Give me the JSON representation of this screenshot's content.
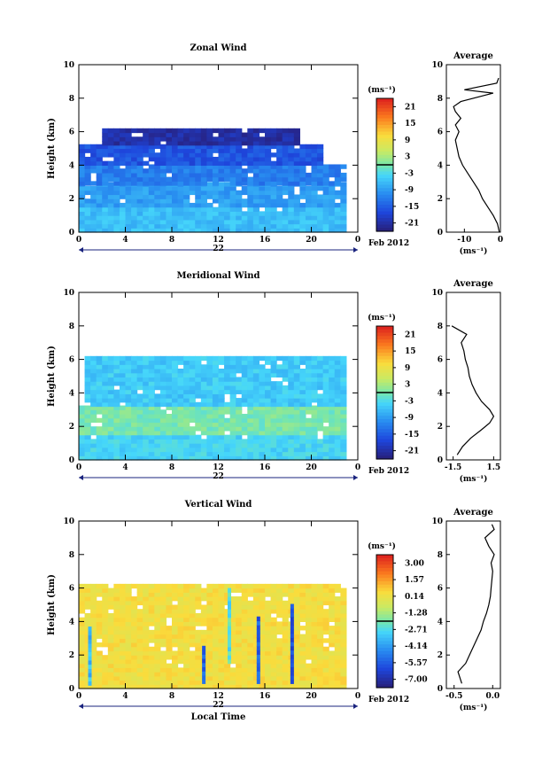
{
  "chart_data": [
    {
      "type": "heatmap",
      "title": "Zonal Wind",
      "ylabel": "Height (km)",
      "x_ticks": [
        "0",
        "4",
        "8",
        "12",
        "16",
        "20",
        "0"
      ],
      "xlim": [
        0,
        24
      ],
      "y_ticks": [
        "0",
        "2",
        "4",
        "6",
        "8",
        "10"
      ],
      "ylim": [
        0,
        10
      ],
      "date_day": "22",
      "date_month": "Feb 2012",
      "colorbar": {
        "unit": "(ms⁻¹)",
        "ticks": [
          "21",
          "15",
          "9",
          "3",
          "-3",
          "-9",
          "-15",
          "-21"
        ],
        "range": [
          -24,
          24
        ]
      },
      "layers": [
        {
          "y": [
            0,
            1.5
          ],
          "value": -6,
          "x_start": 0,
          "x_end": 23
        },
        {
          "y": [
            1.5,
            2.8
          ],
          "value": -9,
          "x_start": 0,
          "x_end": 23
        },
        {
          "y": [
            2.8,
            4.0
          ],
          "value": -12,
          "x_start": 0,
          "x_end": 23
        },
        {
          "y": [
            4.0,
            5.2
          ],
          "value": -16,
          "x_start": 0,
          "x_end": 21
        },
        {
          "y": [
            5.2,
            6.2
          ],
          "value": -21,
          "x_start": 2,
          "x_end": 19
        }
      ],
      "average_profile": {
        "title": "Average",
        "xlabel": "(ms⁻¹)",
        "x_ticks": [
          "-10",
          "0"
        ],
        "xlim": [
          -15,
          0
        ],
        "points": [
          [
            -0.3,
            0
          ],
          [
            -0.8,
            0.5
          ],
          [
            -2,
            1
          ],
          [
            -3.5,
            1.5
          ],
          [
            -5,
            2
          ],
          [
            -6,
            2.5
          ],
          [
            -7.5,
            3
          ],
          [
            -9,
            3.5
          ],
          [
            -10.5,
            4
          ],
          [
            -11.5,
            4.5
          ],
          [
            -12,
            5
          ],
          [
            -12.5,
            5.5
          ],
          [
            -11.5,
            6
          ],
          [
            -12.5,
            6.4
          ],
          [
            -11,
            6.8
          ],
          [
            -12.5,
            7.2
          ],
          [
            -13,
            7.5
          ],
          [
            -11,
            7.8
          ],
          [
            -2,
            8.3
          ],
          [
            -10,
            8.5
          ],
          [
            -1,
            8.9
          ],
          [
            -0.5,
            9.2
          ]
        ]
      }
    },
    {
      "type": "heatmap",
      "title": "Meridional Wind",
      "ylabel": "Height (km)",
      "x_ticks": [
        "0",
        "4",
        "8",
        "12",
        "16",
        "20",
        "0"
      ],
      "xlim": [
        0,
        24
      ],
      "y_ticks": [
        "0",
        "2",
        "4",
        "6",
        "8",
        "10"
      ],
      "ylim": [
        0,
        10
      ],
      "date_day": "22",
      "date_month": "Feb 2012",
      "colorbar": {
        "unit": "(ms⁻¹)",
        "ticks": [
          "21",
          "15",
          "9",
          "3",
          "-3",
          "-9",
          "-15",
          "-21"
        ],
        "range": [
          -24,
          24
        ]
      },
      "layers": [
        {
          "y": [
            0,
            1.5
          ],
          "value": -4,
          "x_start": 0,
          "x_end": 23
        },
        {
          "y": [
            1.5,
            3.2
          ],
          "value": 0,
          "x_start": 0,
          "x_end": 23
        },
        {
          "y": [
            3.2,
            6.0
          ],
          "value": -5,
          "x_start": 0.5,
          "x_end": 23
        }
      ],
      "average_profile": {
        "title": "Average",
        "xlabel": "(ms⁻¹)",
        "x_ticks": [
          "-1.5",
          "1.5"
        ],
        "xlim": [
          -2,
          2
        ],
        "points": [
          [
            -1.2,
            0.3
          ],
          [
            -0.8,
            0.8
          ],
          [
            -0.2,
            1.3
          ],
          [
            0.6,
            1.8
          ],
          [
            1.2,
            2.2
          ],
          [
            1.5,
            2.6
          ],
          [
            1.2,
            3.0
          ],
          [
            0.6,
            3.5
          ],
          [
            0.2,
            4.0
          ],
          [
            -0.1,
            4.5
          ],
          [
            -0.3,
            5.0
          ],
          [
            -0.4,
            5.5
          ],
          [
            -0.6,
            6.0
          ],
          [
            -0.7,
            6.5
          ],
          [
            -0.9,
            7.0
          ],
          [
            -0.5,
            7.5
          ],
          [
            -1.6,
            8.0
          ]
        ]
      }
    },
    {
      "type": "heatmap",
      "title": "Vertical Wind",
      "ylabel": "Height (km)",
      "xlabel": "Local Time",
      "x_ticks": [
        "0",
        "4",
        "8",
        "12",
        "16",
        "20",
        "0"
      ],
      "xlim": [
        0,
        24
      ],
      "y_ticks": [
        "0",
        "2",
        "4",
        "6",
        "8",
        "10"
      ],
      "ylim": [
        0,
        10
      ],
      "date_day": "22",
      "date_month": "Feb 2012",
      "colorbar": {
        "unit": "(ms⁻¹)",
        "ticks": [
          "3.00",
          "1.57",
          "0.14",
          "-1.28",
          "-2.71",
          "-4.14",
          "-5.57",
          "-7.00"
        ],
        "range": [
          -7.71,
          3.71
        ]
      },
      "layers": [
        {
          "y": [
            0,
            6.2
          ],
          "value": 0.3,
          "x_start": 0,
          "x_end": 23
        }
      ],
      "streaks": [
        {
          "x": 0.8,
          "y": [
            0.2,
            3.6
          ],
          "value": -3.5
        },
        {
          "x": 10.6,
          "y": [
            0.3,
            2.5
          ],
          "value": -5.5
        },
        {
          "x": 12.8,
          "y": [
            1.5,
            6.0
          ],
          "value": -2.5
        },
        {
          "x": 15.3,
          "y": [
            0.3,
            4.2
          ],
          "value": -5.5
        },
        {
          "x": 18.2,
          "y": [
            0.3,
            5.0
          ],
          "value": -6.0
        }
      ],
      "average_profile": {
        "title": "Average",
        "xlabel": "(ms⁻¹)",
        "x_ticks": [
          "-0.5",
          "0.0"
        ],
        "xlim": [
          -0.6,
          0.1
        ],
        "points": [
          [
            -0.4,
            0.3
          ],
          [
            -0.45,
            1.0
          ],
          [
            -0.35,
            1.5
          ],
          [
            -0.3,
            2.0
          ],
          [
            -0.25,
            2.5
          ],
          [
            -0.2,
            3.0
          ],
          [
            -0.15,
            3.5
          ],
          [
            -0.12,
            4.0
          ],
          [
            -0.08,
            4.5
          ],
          [
            -0.05,
            5.0
          ],
          [
            -0.03,
            5.5
          ],
          [
            -0.02,
            6.0
          ],
          [
            0.0,
            7.0
          ],
          [
            -0.02,
            7.5
          ],
          [
            0.02,
            8.0
          ],
          [
            -0.05,
            8.5
          ],
          [
            -0.1,
            9.0
          ],
          [
            0.02,
            9.5
          ],
          [
            -0.01,
            9.8
          ]
        ]
      }
    }
  ]
}
